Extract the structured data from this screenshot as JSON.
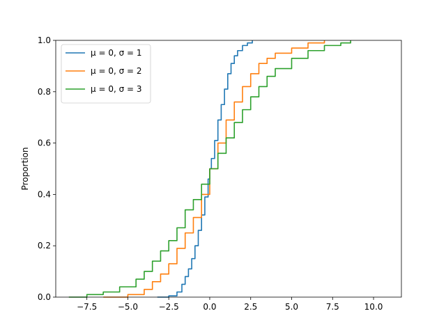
{
  "chart_data": {
    "type": "line",
    "title": "",
    "xlabel": "",
    "ylabel": "Proportion",
    "xlim": [
      -9.4,
      11.7
    ],
    "ylim": [
      0,
      1
    ],
    "x_ticks": [
      -7.5,
      -5.0,
      -2.5,
      0.0,
      2.5,
      5.0,
      7.5,
      10.0
    ],
    "x_tick_labels": [
      "−7.5",
      "−5.0",
      "−2.5",
      "0.0",
      "2.5",
      "5.0",
      "7.5",
      "10.0"
    ],
    "y_ticks": [
      0.0,
      0.2,
      0.4,
      0.6,
      0.8,
      1.0
    ],
    "y_tick_labels": [
      "0.0",
      "0.2",
      "0.4",
      "0.6",
      "0.8",
      "1.0"
    ],
    "grid": false,
    "legend_position": "top-left",
    "series": [
      {
        "name": "μ = 0, σ = 1",
        "color": "#1f77b4",
        "points": [
          [
            -3.2,
            0.0
          ],
          [
            -2.5,
            0.005
          ],
          [
            -2.0,
            0.02
          ],
          [
            -1.7,
            0.05
          ],
          [
            -1.5,
            0.08
          ],
          [
            -1.3,
            0.11
          ],
          [
            -1.1,
            0.15
          ],
          [
            -0.9,
            0.2
          ],
          [
            -0.7,
            0.26
          ],
          [
            -0.5,
            0.32
          ],
          [
            -0.3,
            0.39
          ],
          [
            -0.1,
            0.46
          ],
          [
            0.0,
            0.5
          ],
          [
            0.1,
            0.54
          ],
          [
            0.3,
            0.61
          ],
          [
            0.5,
            0.69
          ],
          [
            0.7,
            0.75
          ],
          [
            0.9,
            0.81
          ],
          [
            1.1,
            0.87
          ],
          [
            1.3,
            0.91
          ],
          [
            1.5,
            0.94
          ],
          [
            1.7,
            0.96
          ],
          [
            2.0,
            0.98
          ],
          [
            2.3,
            0.99
          ],
          [
            2.6,
            1.0
          ]
        ]
      },
      {
        "name": "μ = 0, σ = 2",
        "color": "#ff7f0e",
        "points": [
          [
            -6.5,
            0.0
          ],
          [
            -5.0,
            0.01
          ],
          [
            -4.0,
            0.03
          ],
          [
            -3.5,
            0.06
          ],
          [
            -3.0,
            0.09
          ],
          [
            -2.5,
            0.13
          ],
          [
            -2.0,
            0.19
          ],
          [
            -1.5,
            0.25
          ],
          [
            -1.0,
            0.31
          ],
          [
            -0.5,
            0.4
          ],
          [
            0.0,
            0.5
          ],
          [
            0.5,
            0.6
          ],
          [
            1.0,
            0.69
          ],
          [
            1.5,
            0.76
          ],
          [
            2.0,
            0.82
          ],
          [
            2.5,
            0.87
          ],
          [
            3.0,
            0.91
          ],
          [
            3.5,
            0.93
          ],
          [
            4.0,
            0.95
          ],
          [
            5.0,
            0.97
          ],
          [
            6.0,
            0.99
          ],
          [
            7.0,
            1.0
          ]
        ]
      },
      {
        "name": "μ = 0, σ = 3",
        "color": "#2ca02c",
        "points": [
          [
            -8.6,
            0.0
          ],
          [
            -7.5,
            0.01
          ],
          [
            -6.5,
            0.02
          ],
          [
            -5.5,
            0.04
          ],
          [
            -4.5,
            0.07
          ],
          [
            -4.0,
            0.1
          ],
          [
            -3.5,
            0.14
          ],
          [
            -3.0,
            0.18
          ],
          [
            -2.5,
            0.22
          ],
          [
            -2.0,
            0.27
          ],
          [
            -1.5,
            0.34
          ],
          [
            -1.0,
            0.38
          ],
          [
            -0.5,
            0.44
          ],
          [
            0.0,
            0.5
          ],
          [
            0.5,
            0.56
          ],
          [
            1.0,
            0.62
          ],
          [
            1.5,
            0.68
          ],
          [
            2.0,
            0.73
          ],
          [
            2.5,
            0.78
          ],
          [
            3.0,
            0.82
          ],
          [
            3.5,
            0.86
          ],
          [
            4.0,
            0.89
          ],
          [
            5.0,
            0.93
          ],
          [
            6.0,
            0.96
          ],
          [
            7.0,
            0.98
          ],
          [
            8.0,
            0.99
          ],
          [
            8.6,
            1.0
          ]
        ]
      }
    ]
  }
}
